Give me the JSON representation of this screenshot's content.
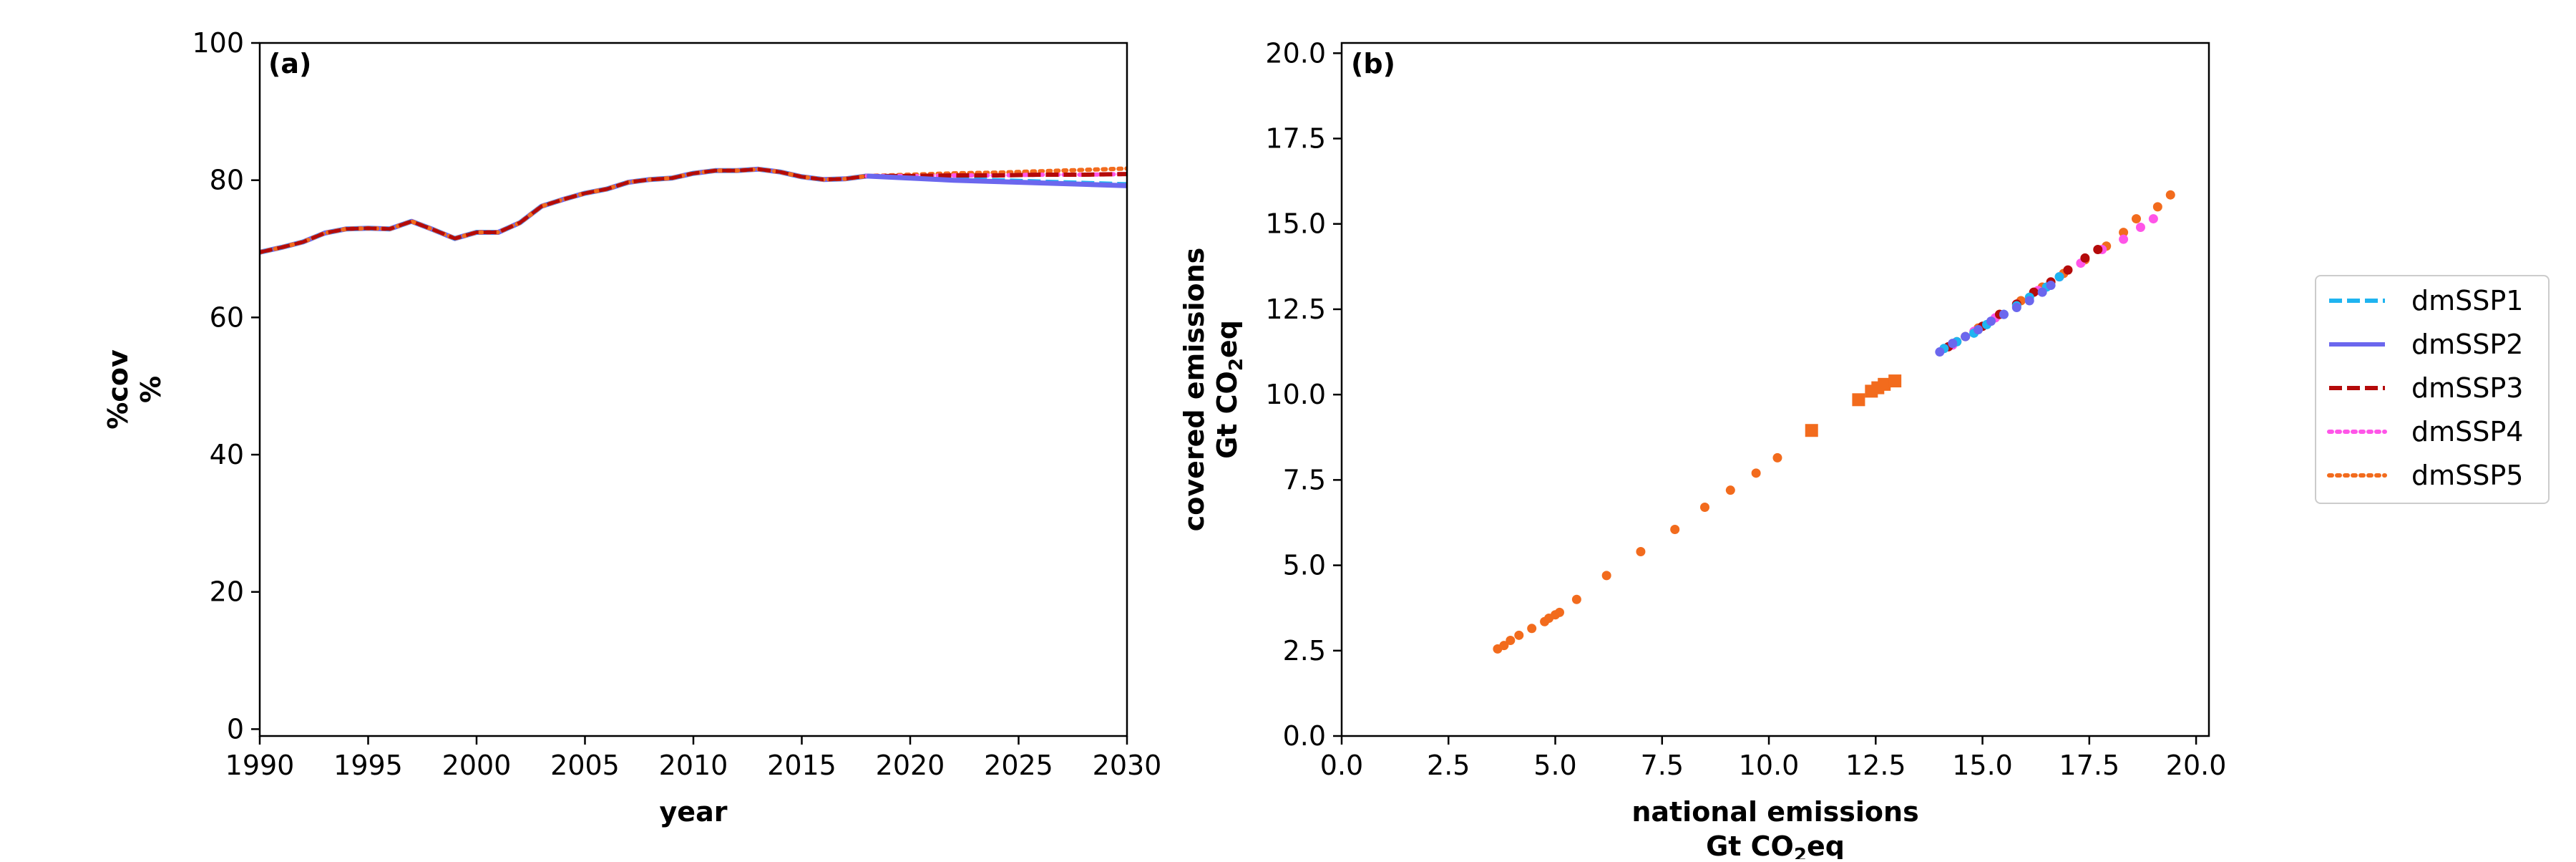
{
  "chart_data": [
    {
      "panel_label": "(a)",
      "type": "line",
      "xlabel": "year",
      "ylabel": [
        "%cov",
        "%"
      ],
      "xlim": [
        1990,
        2030
      ],
      "ylim": [
        -1,
        100
      ],
      "xticks": [
        1990,
        1995,
        2000,
        2005,
        2010,
        2015,
        2020,
        2025,
        2030
      ],
      "yticks": [
        0,
        20,
        40,
        60,
        80,
        100
      ],
      "historical": {
        "x": [
          1990,
          1991,
          1992,
          1993,
          1994,
          1995,
          1996,
          1997,
          1998,
          1999,
          2000,
          2001,
          2002,
          2003,
          2004,
          2005,
          2006,
          2007,
          2008,
          2009,
          2010,
          2011,
          2012,
          2013,
          2014,
          2015,
          2016,
          2017,
          2018
        ],
        "y": [
          69.5,
          70.2,
          71,
          72.3,
          72.9,
          73,
          72.9,
          74,
          72.8,
          71.5,
          72.4,
          72.4,
          73.8,
          76.2,
          77.2,
          78.1,
          78.7,
          79.7,
          80.1,
          80.3,
          81,
          81.4,
          81.4,
          81.6,
          81.2,
          80.5,
          80.1,
          80.2,
          80.6
        ]
      },
      "series": [
        {
          "name": "dmSSP1",
          "x": [
            2018,
            2020,
            2022,
            2024,
            2026,
            2028,
            2030
          ],
          "y": [
            80.6,
            80.4,
            80.2,
            80,
            79.8,
            79.6,
            79.4
          ]
        },
        {
          "name": "dmSSP2",
          "x": [
            2018,
            2020,
            2022,
            2024,
            2026,
            2028,
            2030
          ],
          "y": [
            80.6,
            80.3,
            80,
            79.8,
            79.6,
            79.4,
            79.2
          ]
        },
        {
          "name": "dmSSP3",
          "x": [
            2018,
            2020,
            2022,
            2024,
            2026,
            2028,
            2030
          ],
          "y": [
            80.6,
            80.6,
            80.7,
            80.7,
            80.8,
            80.8,
            80.9
          ]
        },
        {
          "name": "dmSSP4",
          "x": [
            2018,
            2020,
            2022,
            2024,
            2026,
            2028,
            2030
          ],
          "y": [
            80.6,
            80.6,
            80.7,
            80.7,
            80.8,
            80.8,
            80.9
          ]
        },
        {
          "name": "dmSSP5",
          "x": [
            2018,
            2020,
            2022,
            2024,
            2026,
            2028,
            2030
          ],
          "y": [
            80.6,
            80.8,
            81,
            81.1,
            81.3,
            81.5,
            81.7
          ]
        }
      ]
    },
    {
      "panel_label": "(b)",
      "type": "scatter",
      "xlabel": [
        "national emissions",
        "Gt CO",
        "2",
        "eq"
      ],
      "ylabel": [
        "covered emissions",
        "Gt CO",
        "2",
        "eq"
      ],
      "xlim": [
        0,
        20.3
      ],
      "ylim": [
        0,
        20.3
      ],
      "xticks": [
        0.0,
        2.5,
        5.0,
        7.5,
        10.0,
        12.5,
        15.0,
        17.5,
        20.0
      ],
      "yticks": [
        0.0,
        2.5,
        5.0,
        7.5,
        10.0,
        12.5,
        15.0,
        17.5,
        20.0
      ],
      "historical_circles": [
        [
          3.65,
          2.55
        ],
        [
          3.8,
          2.65
        ],
        [
          3.95,
          2.8
        ],
        [
          4.15,
          2.95
        ],
        [
          4.45,
          3.15
        ],
        [
          4.75,
          3.35
        ],
        [
          4.85,
          3.45
        ],
        [
          5.0,
          3.55
        ],
        [
          5.1,
          3.62
        ],
        [
          5.5,
          4.0
        ],
        [
          6.2,
          4.7
        ],
        [
          7.0,
          5.4
        ],
        [
          7.8,
          6.05
        ],
        [
          8.5,
          6.7
        ],
        [
          9.1,
          7.2
        ],
        [
          9.7,
          7.7
        ],
        [
          10.2,
          8.15
        ]
      ],
      "historical_squares": [
        [
          11.0,
          8.95
        ],
        [
          12.1,
          9.85
        ],
        [
          12.4,
          10.1
        ],
        [
          12.55,
          10.2
        ],
        [
          12.7,
          10.3
        ],
        [
          12.95,
          10.4
        ]
      ],
      "series": [
        {
          "name": "dmSSP1",
          "points": [
            [
              14.1,
              11.35
            ],
            [
              14.4,
              11.55
            ],
            [
              14.8,
              11.8
            ],
            [
              15.1,
              12.05
            ],
            [
              15.5,
              12.35
            ],
            [
              15.8,
              12.6
            ],
            [
              16.1,
              12.85
            ],
            [
              16.5,
              13.15
            ],
            [
              16.8,
              13.45
            ]
          ]
        },
        {
          "name": "dmSSP2",
          "points": [
            [
              14.0,
              11.25
            ],
            [
              14.3,
              11.5
            ],
            [
              14.6,
              11.7
            ],
            [
              14.9,
              11.9
            ],
            [
              15.2,
              12.15
            ],
            [
              15.5,
              12.35
            ],
            [
              15.8,
              12.55
            ],
            [
              16.1,
              12.75
            ],
            [
              16.4,
              13.0
            ],
            [
              16.6,
              13.2
            ]
          ]
        },
        {
          "name": "dmSSP3",
          "points": [
            [
              14.2,
              11.4
            ],
            [
              14.6,
              11.7
            ],
            [
              15.0,
              12.0
            ],
            [
              15.4,
              12.35
            ],
            [
              15.8,
              12.65
            ],
            [
              16.2,
              13.0
            ],
            [
              16.6,
              13.3
            ],
            [
              17.0,
              13.65
            ],
            [
              17.4,
              14.0
            ],
            [
              17.7,
              14.25
            ]
          ]
        },
        {
          "name": "dmSSP4",
          "points": [
            [
              14.3,
              11.45
            ],
            [
              14.8,
              11.85
            ],
            [
              15.3,
              12.25
            ],
            [
              15.8,
              12.65
            ],
            [
              16.3,
              13.05
            ],
            [
              16.8,
              13.45
            ],
            [
              17.3,
              13.85
            ],
            [
              17.8,
              14.25
            ],
            [
              18.3,
              14.55
            ],
            [
              18.7,
              14.9
            ],
            [
              19.0,
              15.15
            ]
          ]
        },
        {
          "name": "dmSSP5",
          "points": [
            [
              14.4,
              11.55
            ],
            [
              14.9,
              11.95
            ],
            [
              15.4,
              12.35
            ],
            [
              15.9,
              12.75
            ],
            [
              16.4,
              13.15
            ],
            [
              16.9,
              13.55
            ],
            [
              17.4,
              13.95
            ],
            [
              17.9,
              14.35
            ],
            [
              18.3,
              14.75
            ],
            [
              18.6,
              15.15
            ],
            [
              19.1,
              15.5
            ],
            [
              19.4,
              15.85
            ]
          ]
        }
      ]
    }
  ],
  "legend": {
    "position": "right",
    "entries": [
      {
        "name": "dmSSP1",
        "color": "#1fb4f0",
        "style": "dashed"
      },
      {
        "name": "dmSSP2",
        "color": "#6b67ee",
        "style": "solid"
      },
      {
        "name": "dmSSP3",
        "color": "#b40a0a",
        "style": "dashed"
      },
      {
        "name": "dmSSP4",
        "color": "#ff55e8",
        "style": "dotted"
      },
      {
        "name": "dmSSP5",
        "color": "#f26b1d",
        "style": "dotted"
      }
    ]
  },
  "colors": {
    "historical": "#f26b1d",
    "axis": "#000000"
  }
}
